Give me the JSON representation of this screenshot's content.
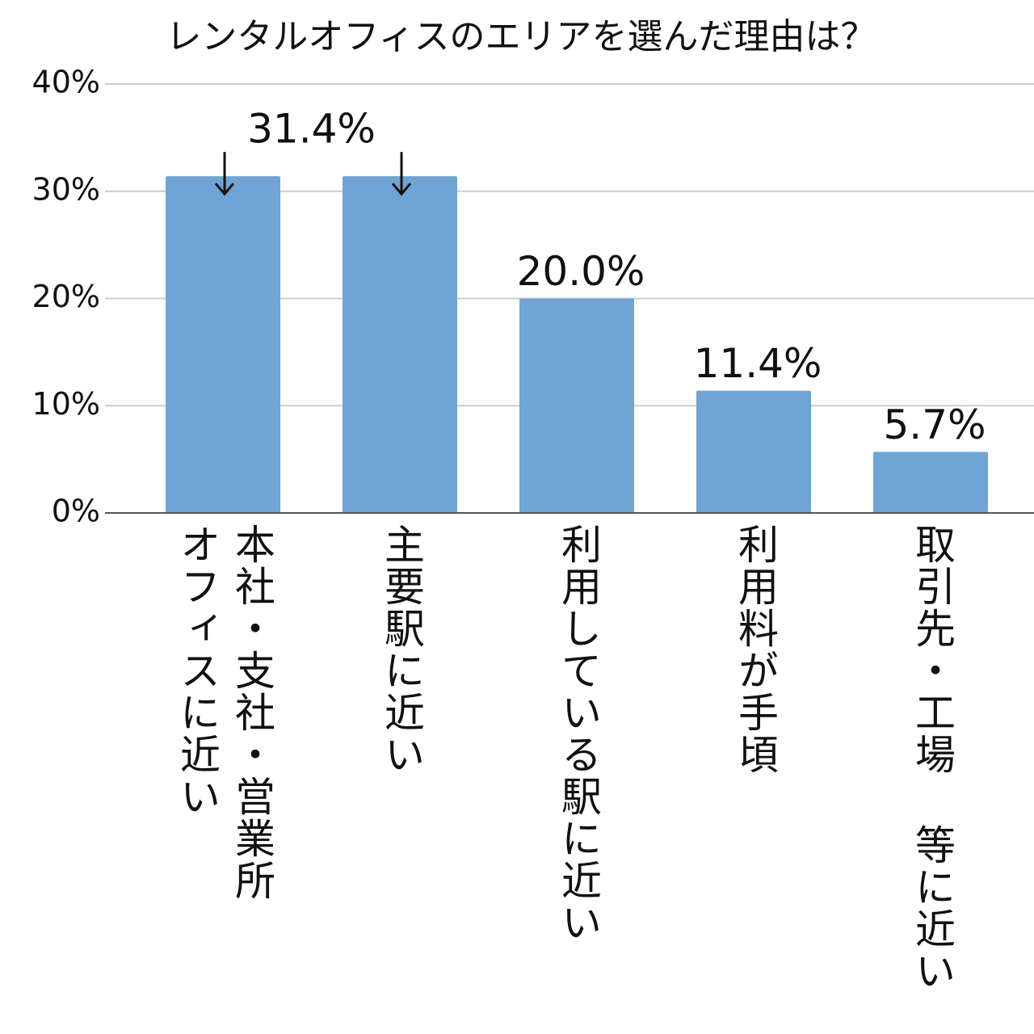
{
  "chart_data": {
    "type": "bar",
    "title": "レンタルオフィスのエリアを選んだ理由は？",
    "categories": [
      "本社・支社・営業所\nオフィスに近い",
      "主要駅に近い",
      "利用している駅に近い",
      "利用料が手頃",
      "取引先・工場 等に近い"
    ],
    "values": [
      31.4,
      31.4,
      20.0,
      11.4,
      5.7
    ],
    "value_labels": [
      "31.4%",
      null,
      "20.0%",
      "11.4%",
      "5.7%"
    ],
    "color": "#6fa4d6",
    "ylim": [
      0,
      40
    ],
    "yticks": [
      {
        "value": 0,
        "label": "0%"
      },
      {
        "value": 10,
        "label": "10%"
      },
      {
        "value": 20,
        "label": "20%"
      },
      {
        "value": 30,
        "label": "30%"
      },
      {
        "value": 40,
        "label": "40%"
      }
    ],
    "grid": true
  }
}
